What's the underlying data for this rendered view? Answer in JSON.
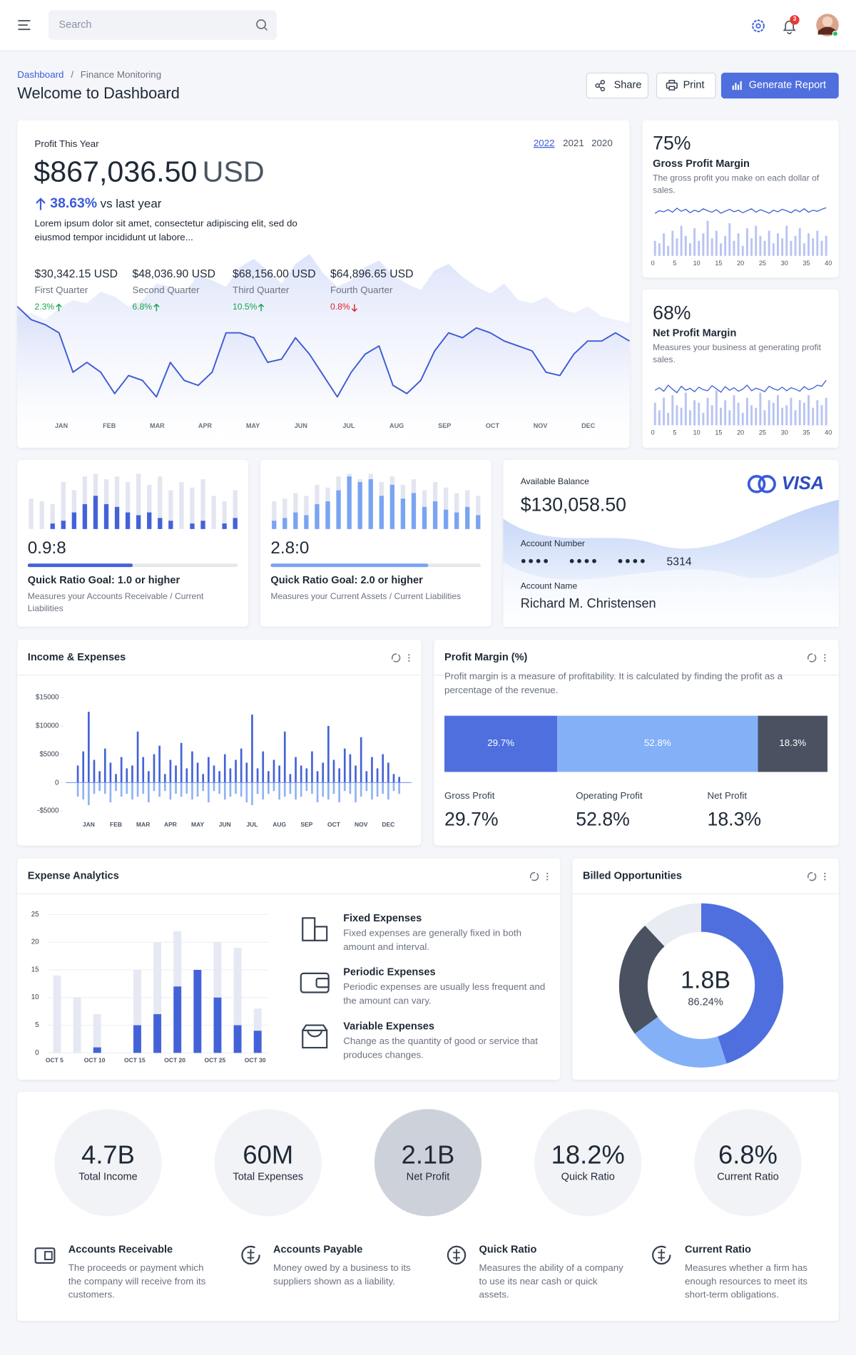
{
  "header": {
    "search": "Search",
    "notifications": "3"
  },
  "breadcrumb": {
    "home": "Dashboard",
    "separator": "/",
    "current": "Finance Monitoring"
  },
  "title": "Welcome to Dashboard",
  "actions": [
    "Share",
    "Print",
    "Generate Report"
  ],
  "profit": {
    "label": "Profit This Year",
    "years": [
      "2022",
      "2021",
      "2020"
    ],
    "selected_year": 0,
    "amount": "$867,036.50",
    "currency": "USD",
    "change": "38.63%",
    "change_text": "vs last year",
    "description": "Lorem ipsum dolor sit amet, consectetur adipiscing elit, sed do eiusmod tempor incididunt ut labore...",
    "quarters": [
      {
        "value": "$30,342.15 USD",
        "name": "First Quarter",
        "change": "2.3%",
        "trend": "up"
      },
      {
        "value": "$48,036.90 USD",
        "name": "Second Quarter",
        "change": "6.8%",
        "trend": "up"
      },
      {
        "value": "$68,156.00 USD",
        "name": "Third Quarter",
        "change": "10.5%",
        "trend": "up"
      },
      {
        "value": "$64,896.65 USD",
        "name": "Fourth Quarter",
        "change": "0.8%",
        "trend": "down"
      }
    ],
    "chart": {
      "type": "line",
      "categories": [
        "JAN",
        "FEB",
        "MAR",
        "APR",
        "MAY",
        "JUN",
        "JUL",
        "AUG",
        "SEP",
        "OCT",
        "NOV",
        "DEC"
      ],
      "ylim": [
        0,
        100
      ],
      "series": [
        {
          "color": "#3f5bd5",
          "values": [
            66,
            58,
            55,
            50,
            26,
            32,
            26,
            13,
            24,
            21,
            11,
            32,
            21,
            18,
            26,
            50,
            50,
            47,
            32,
            34,
            47,
            37,
            24,
            11,
            26,
            37,
            42,
            18,
            13,
            21,
            39,
            50,
            47,
            53,
            50,
            45,
            42,
            39,
            26,
            24,
            37,
            45,
            45,
            50,
            45
          ]
        },
        {
          "color": "#dfe5fb",
          "values": [
            60,
            62,
            58,
            65,
            70,
            68,
            75,
            72,
            66,
            70,
            80,
            78,
            74,
            85,
            82,
            78,
            90,
            95,
            88,
            80,
            92,
            98,
            86,
            78,
            82,
            90,
            94,
            85,
            80,
            76,
            88,
            92,
            84,
            78,
            74,
            80,
            70,
            68,
            72,
            65,
            62,
            66,
            60,
            58,
            56
          ]
        }
      ]
    }
  },
  "margins": [
    {
      "value": "75%",
      "title": "Gross Profit Margin",
      "description": "The gross profit you make on each dollar of sales.",
      "chart": {
        "type": "bar",
        "xlim": [
          0,
          40
        ],
        "xticks": [
          0,
          5,
          10,
          15,
          20,
          25,
          30,
          35,
          40
        ],
        "ylim": [
          0,
          100
        ],
        "bars": {
          "color": "#b8c4f2",
          "values": [
            30,
            25,
            45,
            20,
            50,
            35,
            60,
            40,
            25,
            55,
            30,
            45,
            70,
            35,
            50,
            25,
            40,
            65,
            30,
            45,
            20,
            55,
            35,
            60,
            40,
            30,
            50,
            25,
            45,
            35,
            60,
            30,
            40,
            55,
            25,
            45,
            35,
            50,
            30,
            40
          ]
        },
        "line": {
          "color": "#4461d6",
          "values": [
            85,
            90,
            88,
            92,
            87,
            95,
            89,
            93,
            86,
            91,
            88,
            94,
            90,
            87,
            92,
            85,
            89,
            93,
            88,
            91,
            86,
            90,
            94,
            87,
            92,
            89,
            85,
            91,
            88,
            93,
            90,
            86,
            92,
            88,
            94,
            87,
            91,
            89,
            93,
            96
          ]
        }
      }
    },
    {
      "value": "68%",
      "title": "Net Profit Margin",
      "description": "Measures your business at generating profit sales.",
      "chart": {
        "type": "bar",
        "xlim": [
          0,
          40
        ],
        "xticks": [
          0,
          5,
          10,
          15,
          20,
          25,
          30,
          35,
          40
        ],
        "ylim": [
          0,
          100
        ],
        "bars": {
          "color": "#b8c4f2",
          "values": [
            45,
            30,
            55,
            25,
            60,
            40,
            35,
            65,
            30,
            50,
            45,
            25,
            55,
            40,
            70,
            35,
            50,
            30,
            60,
            45,
            25,
            55,
            40,
            35,
            65,
            30,
            50,
            45,
            60,
            35,
            40,
            55,
            30,
            50,
            45,
            60,
            35,
            50,
            40,
            55
          ]
        },
        "line": {
          "color": "#4461d6",
          "values": [
            70,
            75,
            68,
            80,
            72,
            65,
            78,
            70,
            74,
            67,
            76,
            71,
            69,
            79,
            73,
            66,
            77,
            70,
            75,
            68,
            72,
            80,
            69,
            74,
            71,
            67,
            78,
            73,
            70,
            76,
            69,
            75,
            72,
            68,
            77,
            71,
            74,
            80,
            78,
            90
          ]
        }
      }
    }
  ],
  "ratios": [
    {
      "value": "0.9:8",
      "progress": 50,
      "progress_color": "#4462d8",
      "title": "Quick Ratio Goal: 1.0 or higher",
      "description": "Measures your Accounts Receivable / Current Liabilities",
      "chart": {
        "type": "bar",
        "ylim": [
          0,
          100
        ],
        "series": [
          {
            "color": "#e3e6f0",
            "values": [
              55,
              50,
              45,
              85,
              70,
              95,
              100,
              90,
              95,
              85,
              100,
              80,
              95,
              70,
              85,
              75,
              90,
              60,
              50,
              70
            ]
          },
          {
            "color": "#4462d8",
            "values": [
              0,
              0,
              10,
              15,
              30,
              45,
              60,
              45,
              40,
              30,
              25,
              30,
              20,
              15,
              0,
              10,
              15,
              0,
              10,
              20
            ]
          }
        ]
      }
    },
    {
      "value": "2.8:0",
      "progress": 75,
      "progress_color": "#7aa4f2",
      "title": "Quick Ratio Goal: 2.0 or higher",
      "description": "Measures your Current Assets / Current Liabilities",
      "chart": {
        "type": "bar",
        "ylim": [
          0,
          100
        ],
        "series": [
          {
            "color": "#e3e6f0",
            "values": [
              50,
              55,
              65,
              60,
              80,
              75,
              95,
              100,
              90,
              100,
              85,
              95,
              80,
              90,
              70,
              85,
              75,
              65,
              70,
              60
            ]
          },
          {
            "color": "#7aa4f2",
            "values": [
              15,
              20,
              30,
              25,
              45,
              50,
              70,
              95,
              85,
              90,
              60,
              80,
              55,
              65,
              40,
              50,
              35,
              30,
              40,
              25
            ]
          }
        ]
      }
    }
  ],
  "balance": {
    "label": "Available Balance",
    "amount": "$130,058.50",
    "brand": "VISA",
    "account_number_label": "Account Number",
    "account_number": [
      "●●●●",
      "●●●●",
      "●●●●",
      "5314"
    ],
    "account_name_label": "Account Name",
    "account_name": "Richard M. Christensen"
  },
  "income_expenses": {
    "title": "Income & Expenses",
    "chart": {
      "type": "bar",
      "categories": [
        "JAN",
        "FEB",
        "MAR",
        "APR",
        "MAY",
        "JUN",
        "JUL",
        "AUG",
        "SEP",
        "OCT",
        "NOV",
        "DEC"
      ],
      "ylim": [
        -5000,
        15000
      ],
      "yticks": [
        {
          "value": 15000,
          "label": "$15000"
        },
        {
          "value": 10000,
          "label": "$10000"
        },
        {
          "value": 5000,
          "label": "$5000"
        },
        0,
        {
          "value": -5000,
          "label": "-$5000"
        }
      ],
      "series": [
        {
          "color": "#4462d8",
          "values": [
            [
              3000,
              5500,
              12500,
              4000,
              2000
            ],
            [
              6000,
              3500,
              1500,
              4500,
              2500
            ],
            [
              3000,
              9000,
              4500,
              2000,
              5000
            ],
            [
              6500,
              1500,
              4000,
              3000,
              7000
            ],
            [
              2500,
              5500,
              3500,
              1500,
              4500
            ],
            [
              3000,
              2000,
              5000,
              2500,
              4000
            ],
            [
              6000,
              3500,
              12000,
              2500,
              5500
            ],
            [
              2000,
              4000,
              3000,
              9000,
              1500
            ],
            [
              4500,
              3000,
              2500,
              5500,
              2000
            ],
            [
              3500,
              10000,
              4000,
              2500,
              6000
            ],
            [
              5000,
              3000,
              8000,
              2000,
              4500
            ],
            [
              2500,
              5000,
              3500,
              1500,
              1000
            ]
          ]
        },
        {
          "color": "#8fb2f5",
          "values": [
            [
              -2500,
              -3000,
              -4000,
              -2000,
              -1500
            ],
            [
              -2000,
              -3500,
              -1500,
              -2500,
              -2000
            ],
            [
              -3000,
              -2500,
              -2000,
              -3500,
              -1500
            ],
            [
              -2500,
              -1500,
              -3000,
              -2000,
              -2500
            ],
            [
              -2000,
              -3000,
              -2500,
              -1500,
              -3500
            ],
            [
              -1500,
              -2000,
              -3000,
              -2500,
              -2000
            ],
            [
              -2500,
              -3500,
              -4000,
              -2000,
              -3000
            ],
            [
              -2000,
              -1500,
              -3000,
              -2500,
              -2000
            ],
            [
              -3000,
              -2500,
              -1500,
              -2000,
              -3500
            ],
            [
              -2500,
              -3000,
              -2000,
              -3500,
              -1500
            ],
            [
              -2000,
              -3500,
              -2500,
              -1500,
              -3000
            ],
            [
              -2500,
              -2000,
              -3000,
              -1500,
              -2000
            ]
          ]
        }
      ]
    }
  },
  "profit_margin": {
    "title": "Profit Margin (%)",
    "description": "Profit margin is a measure of profitability. It is calculated by finding the profit as a percentage of the revenue.",
    "chart": {
      "type": "stacked_bar",
      "categories": [
        "Gross Profit",
        "Operating Profit",
        "Net Profit"
      ],
      "values": [
        29.7,
        52.8,
        18.3
      ],
      "value_labels": [
        "29.7%",
        "52.8%",
        "18.3%"
      ],
      "colors": [
        "#4f6fde",
        "#84b0f7",
        "#4a5261"
      ]
    }
  },
  "expense_analytics": {
    "title": "Expense Analytics",
    "chart": {
      "type": "bar",
      "categories": [
        "OCT 5",
        null,
        "OCT 10",
        null,
        "OCT 15",
        null,
        "OCT 20",
        null,
        "OCT 25",
        null,
        "OCT 30"
      ],
      "ylim": [
        0,
        25
      ],
      "yticks": [
        0,
        5,
        10,
        15,
        20,
        25
      ],
      "grid": true,
      "series": [
        {
          "color": "#e6e9f4",
          "values": [
            14,
            10,
            7,
            0,
            15,
            20,
            22,
            15,
            20,
            19,
            8
          ]
        },
        {
          "color": "#4462d8",
          "values": [
            0,
            0,
            1,
            0,
            5,
            7,
            12,
            15,
            10,
            5,
            4
          ]
        }
      ]
    },
    "items": [
      {
        "title": "Fixed Expenses",
        "description": "Fixed expenses are generally fixed in both amount and interval."
      },
      {
        "title": "Periodic Expenses",
        "description": "Periodic expenses are usually less frequent and the amount can vary."
      },
      {
        "title": "Variable Expenses",
        "description": "Change as the quantity of good or service that produces changes."
      }
    ]
  },
  "billed": {
    "title": "Billed Opportunities",
    "total": "1.8B",
    "percent": "86.24%",
    "chart": {
      "type": "pie",
      "values": [
        45,
        20,
        23,
        12
      ],
      "colors": [
        "#4f6fde",
        "#84b0f7",
        "#4a5261",
        "#e9ecf2"
      ]
    }
  },
  "summary": {
    "active": 2,
    "stats": [
      {
        "value": "4.7B",
        "label": "Total Income"
      },
      {
        "value": "60M",
        "label": "Total Expenses"
      },
      {
        "value": "2.1B",
        "label": "Net Profit"
      },
      {
        "value": "18.2%",
        "label": "Quick Ratio"
      },
      {
        "value": "6.8%",
        "label": "Current Ratio"
      }
    ],
    "items": [
      {
        "title": "Accounts Receivable",
        "description": "The proceeds or payment which the company will receive from its customers."
      },
      {
        "title": "Accounts Payable",
        "description": "Money owed by a business to its suppliers shown as a liability."
      },
      {
        "title": "Quick Ratio",
        "description": "Measures the ability of a company to use its near cash or quick assets."
      },
      {
        "title": "Current Ratio",
        "description": "Measures whether a firm has enough resources to meet its short-term obligations."
      }
    ]
  }
}
